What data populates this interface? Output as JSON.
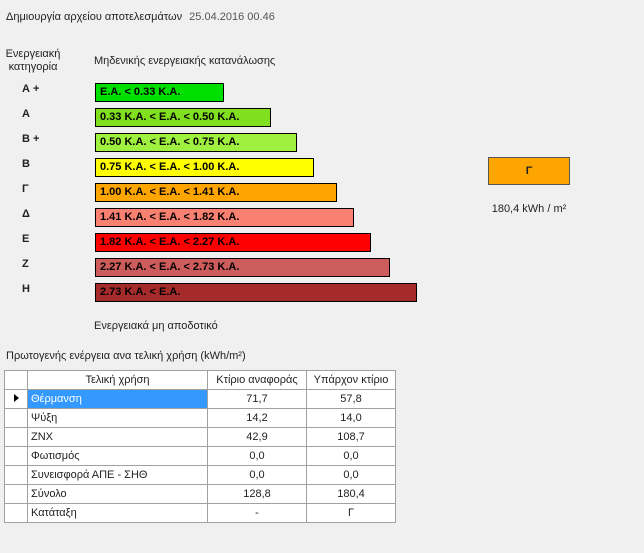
{
  "header": {
    "title": "Δημιουργία αρχείου αποτελεσμάτων",
    "timestamp": "25.04.2016 00.46"
  },
  "scale": {
    "category_heading_line1": "Ενεργειακή",
    "category_heading_line2": "κατηγορία",
    "top_label": "Μηδενικής ενεργειακής κατανάλωσης",
    "bottom_label": "Ενεργειακά μη αποδοτικό",
    "rows": [
      {
        "letter": "Α +",
        "text": "Ε.Α. < 0.33 Κ.Α.",
        "color": "#00e000"
      },
      {
        "letter": "Α",
        "text": "0.33 Κ.Α. <  Ε.Α. < 0.50 Κ.Α.",
        "color": "#80e020"
      },
      {
        "letter": "Β +",
        "text": "0.50 Κ.Α. <  Ε.Α. < 0.75 Κ.Α.",
        "color": "#a0f040"
      },
      {
        "letter": "Β",
        "text": "0.75 Κ.Α. <  Ε.Α. < 1.00 Κ.Α.",
        "color": "#ffff00"
      },
      {
        "letter": "Γ",
        "text": "1.00 Κ.Α. <  Ε.Α. < 1.41 Κ.Α.",
        "color": "#ffa500"
      },
      {
        "letter": "Δ",
        "text": "1.41 Κ.Α. <  Ε.Α. < 1.82 Κ.Α.",
        "color": "#fa8072"
      },
      {
        "letter": "Ε",
        "text": "1.82 Κ.Α. <  Ε.Α. < 2.27 Κ.Α.",
        "color": "#ff0000"
      },
      {
        "letter": "Ζ",
        "text": "2.27 Κ.Α. <  Ε.Α. < 2.73 Κ.Α.",
        "color": "#cd5c5c"
      },
      {
        "letter": "Η",
        "text": "2.73 Κ.Α. <  Ε.Α.",
        "color": "#a52a2a"
      }
    ]
  },
  "result": {
    "category": "Γ",
    "category_color": "#ffa500",
    "value": "180,4 kWh / m²"
  },
  "table": {
    "title": "Πρωτογενής ενέργεια ανα τελική χρήση (kWh/m²)",
    "headers": [
      "Τελική χρήση",
      "Κτίριο αναφοράς",
      "Υπάρχον κτίριο"
    ],
    "rows": [
      [
        "Θέρμανση",
        "71,7",
        "57,8"
      ],
      [
        "Ψύξη",
        "14,2",
        "14,0"
      ],
      [
        "ΖΝΧ",
        "42,9",
        "108,7"
      ],
      [
        "Φωτισμός",
        "0,0",
        "0,0"
      ],
      [
        "Συνεισφορά ΑΠΕ - ΣΗΘ",
        "0,0",
        "0,0"
      ],
      [
        "Σύνολο",
        "128,8",
        "180,4"
      ],
      [
        "Κατάταξη",
        "-",
        "Γ"
      ]
    ]
  }
}
